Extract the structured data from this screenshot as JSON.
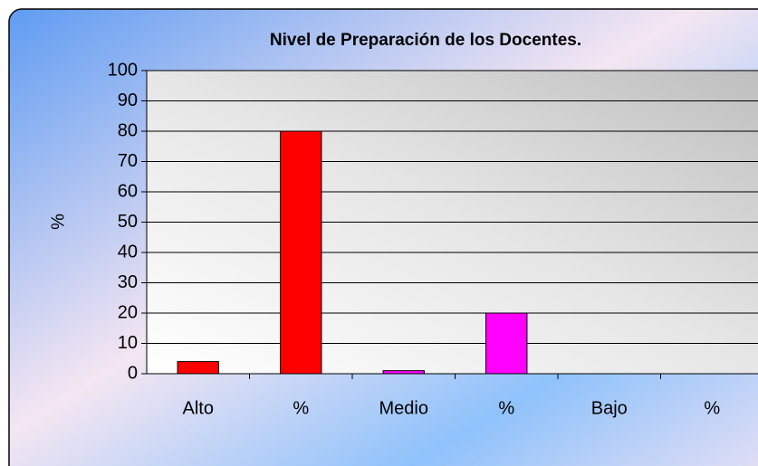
{
  "chart_data": {
    "type": "bar",
    "title": "Nivel de Preparación de los Docentes.",
    "y_label": "%",
    "categories": [
      "Alto",
      "%",
      "Medio",
      "%",
      "Bajo",
      "%"
    ],
    "values": [
      4,
      80,
      1,
      20,
      0,
      0
    ],
    "colors": [
      "#ff0000",
      "#ff0000",
      "#ff00ff",
      "#ff00ff",
      "#ff0000",
      "#ff0000"
    ],
    "ylim": [
      0,
      100
    ],
    "yticks": [
      0,
      10,
      20,
      30,
      40,
      50,
      60,
      70,
      80,
      90,
      100
    ],
    "grid": true
  }
}
